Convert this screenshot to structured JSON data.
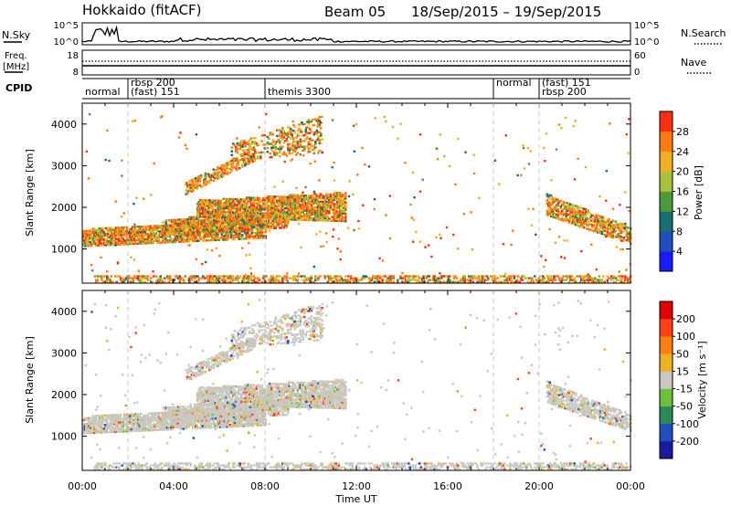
{
  "header": {
    "station": "Hokkaido (fitACF)",
    "beam": "Beam 05",
    "date_range": "18/Sep/2015 – 19/Sep/2015"
  },
  "chart_data": [
    {
      "type": "line",
      "name": "nsky-nsearch",
      "left_label": "N.Sky",
      "right_label": "N.Search",
      "left_ticks": [
        "10^5",
        "10^0"
      ],
      "right_ticks": [
        "10^5",
        "10^0"
      ]
    },
    {
      "type": "line",
      "name": "freq-nave",
      "left_label": "Freq.",
      "left_unit": "[MHz]",
      "right_label": "Nave",
      "left_ticks": [
        18,
        8
      ],
      "right_ticks": [
        60,
        0
      ]
    },
    {
      "type": "table",
      "name": "cpid",
      "label": "CPID",
      "segments": [
        {
          "text": "normal",
          "x": 0.0,
          "row": 1
        },
        {
          "text": "rbsp 200",
          "x": 2.0,
          "row": 0
        },
        {
          "text": "(fast) 151",
          "x": 2.0,
          "row": 1
        },
        {
          "text": "themis 3300",
          "x": 8.0,
          "row": 1
        },
        {
          "text": "normal",
          "x": 18.0,
          "row": 0
        },
        {
          "text": "(fast) 151",
          "x": 20.0,
          "row": 0
        },
        {
          "text": "rbsp 200",
          "x": 20.0,
          "row": 1
        }
      ]
    },
    {
      "type": "heatmap",
      "name": "power",
      "ylabel": "Slant Range [km]",
      "ylim": [
        180,
        4500
      ],
      "yticks": [
        1000,
        2000,
        3000,
        4000
      ],
      "colorbar": {
        "label": "Power [dB]",
        "ticks": [
          4,
          8,
          12,
          16,
          20,
          24,
          28
        ],
        "range": [
          0,
          32
        ],
        "colors": [
          "#1a1aff",
          "#1f4fbf",
          "#1a6e6e",
          "#4a9a3a",
          "#a9c23a",
          "#f0b020",
          "#ff7a10",
          "#ff3010"
        ]
      }
    },
    {
      "type": "heatmap",
      "name": "velocity",
      "ylabel": "Slant Range [km]",
      "xlabel": "Time UT",
      "ylim": [
        180,
        4500
      ],
      "yticks": [
        1000,
        2000,
        3000,
        4000
      ],
      "xlim": [
        0,
        24
      ],
      "xticks": [
        "00:00",
        "04:00",
        "08:00",
        "12:00",
        "16:00",
        "20:00",
        "00:00"
      ],
      "colorbar": {
        "label": "Velocity [m s⁻¹]",
        "ticks": [
          200,
          100,
          50,
          15,
          -15,
          -50,
          -100,
          -200
        ],
        "colors": [
          "#1a1aa0",
          "#2050c0",
          "#2a8a5a",
          "#6cc03a",
          "#c8c8c0",
          "#f0b020",
          "#ff8010",
          "#ff4010",
          "#e00000"
        ]
      }
    }
  ]
}
